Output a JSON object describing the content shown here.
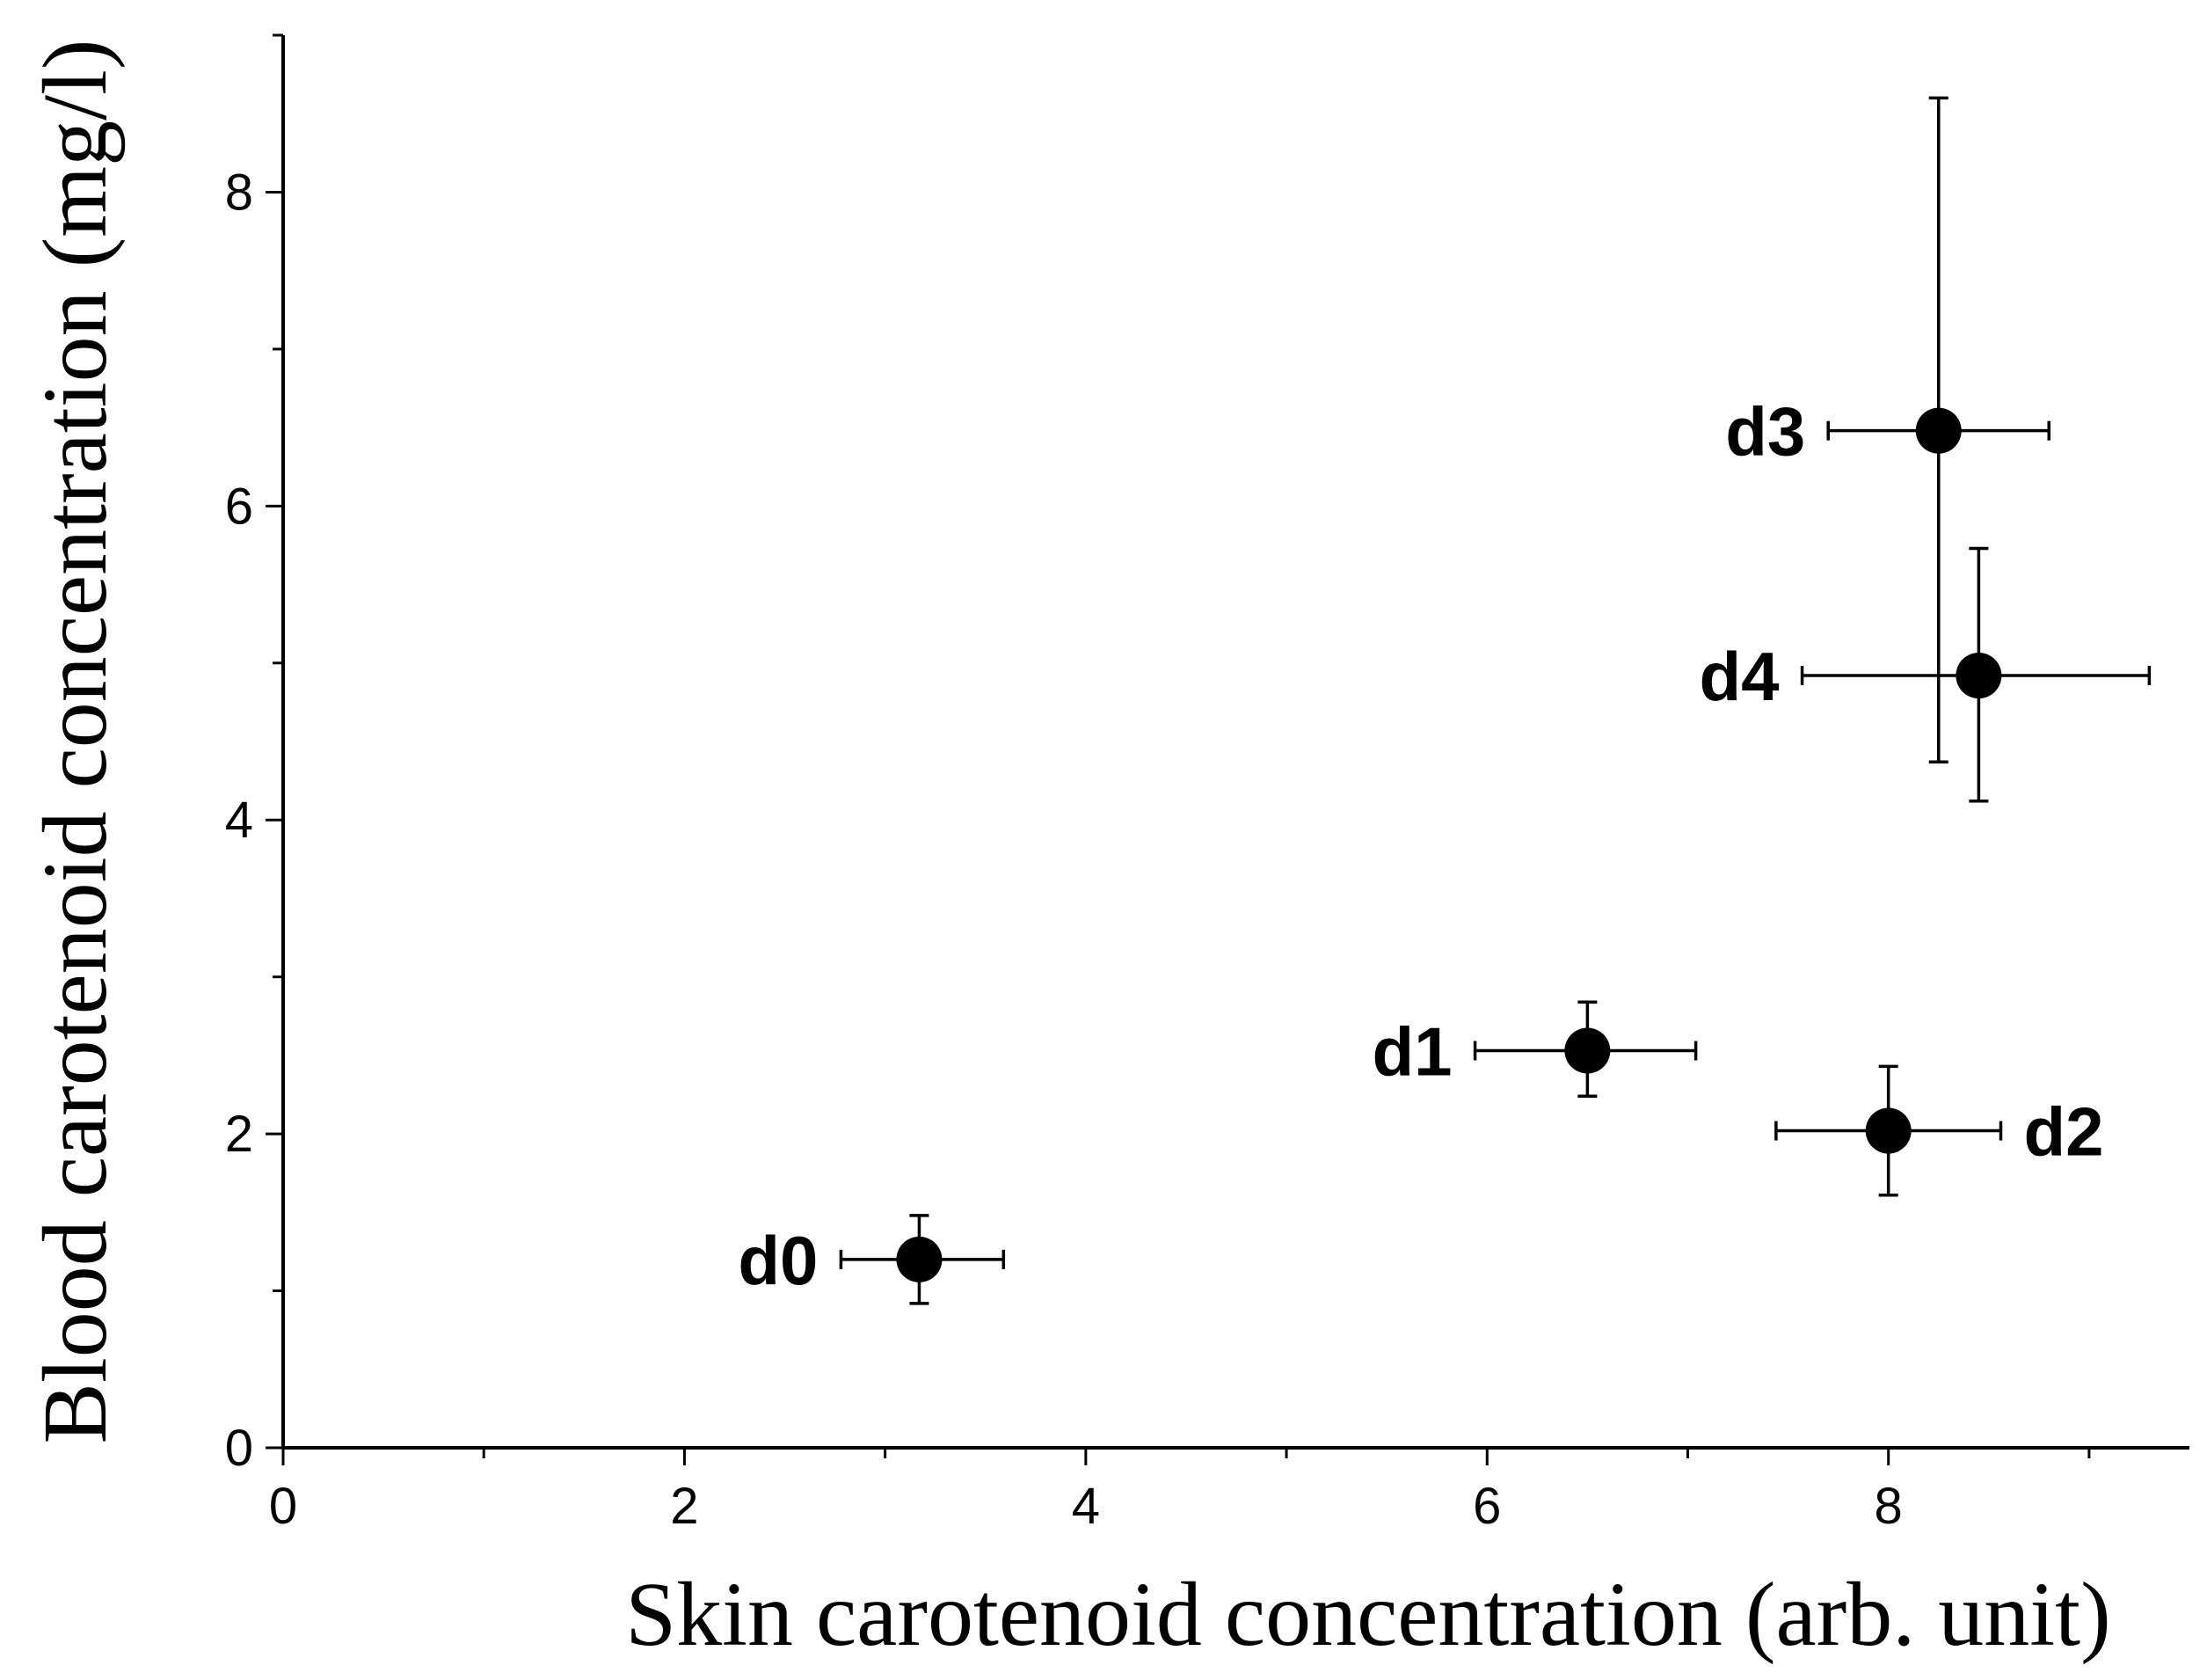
{
  "chart_data": {
    "type": "scatter",
    "title": "",
    "xlabel": "Skin carotenoid concentration (arb. unit)",
    "ylabel": "Blood carotenoid concentration (mg/l)",
    "xlim": [
      0,
      9.5
    ],
    "ylim": [
      0,
      9
    ],
    "x_ticks": [
      0,
      2,
      4,
      6,
      8
    ],
    "y_ticks": [
      0,
      2,
      4,
      6,
      8
    ],
    "x_tick_labels": [
      "0",
      "2",
      "4",
      "6",
      "8"
    ],
    "y_tick_labels": [
      "0",
      "2",
      "4",
      "6",
      "8"
    ],
    "grid": false,
    "points": [
      {
        "label": "d0",
        "x": 3.17,
        "y": 1.2,
        "x_err": [
          2.78,
          3.59
        ],
        "y_err": [
          0.92,
          1.48
        ],
        "label_side": "left"
      },
      {
        "label": "d1",
        "x": 6.5,
        "y": 2.53,
        "x_err": [
          5.94,
          7.04
        ],
        "y_err": [
          2.24,
          2.84
        ],
        "label_side": "left"
      },
      {
        "label": "d2",
        "x": 8.0,
        "y": 2.02,
        "x_err": [
          7.44,
          8.56
        ],
        "y_err": [
          1.61,
          2.43
        ],
        "label_side": "right"
      },
      {
        "label": "d3",
        "x": 8.25,
        "y": 6.48,
        "x_err": [
          7.7,
          8.8
        ],
        "y_err": [
          4.37,
          8.6
        ],
        "label_side": "left"
      },
      {
        "label": "d4",
        "x": 8.45,
        "y": 4.92,
        "x_err": [
          7.57,
          9.3
        ],
        "y_err": [
          4.12,
          5.73
        ],
        "label_side": "left"
      }
    ]
  }
}
